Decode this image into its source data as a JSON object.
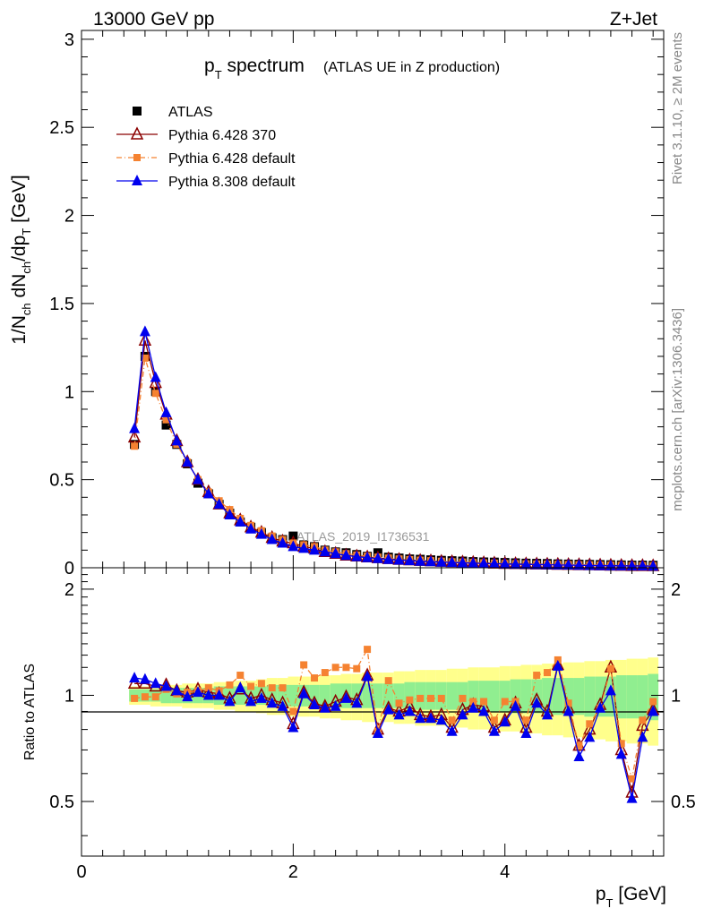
{
  "header": {
    "left": "13000 GeV pp",
    "right": "Z+Jet"
  },
  "side_labels": {
    "rivet": "Rivet 3.1.10, ≥ 2M events",
    "mcplots": "mcplots.cern.ch [arXiv:1306.3436]"
  },
  "analysis_tag": "ATLAS_2019_I1736531",
  "colors": {
    "data": "#000000",
    "p6_370": "#8b0000",
    "p6_default": "#f58231",
    "p8_default": "#0000ee",
    "band_inner": "#90ee90",
    "band_outer": "#ffff8c"
  },
  "chart_data": [
    {
      "type": "scatter",
      "title": "p_T spectrum",
      "title_main": "p",
      "title_sub": "T",
      "title_rest": " spectrum",
      "subtitle": "(ATLAS UE in Z production)",
      "ylabel": "1/N_ch dN_ch/dp_T [GeV]",
      "ylabel_parts": [
        "1/N",
        "ch",
        " dN",
        "ch",
        "/dp",
        "T",
        " [GeV]"
      ],
      "xlim": [
        0,
        5.5
      ],
      "ylim": [
        0,
        3.05
      ],
      "yticks": [
        0,
        0.5,
        1,
        1.5,
        2,
        2.5,
        3
      ],
      "ytick_labels": [
        "0",
        "0.5",
        "1",
        "1.5",
        "2",
        "2.5",
        "3"
      ],
      "legend_position": "top-left",
      "x": [
        0.5,
        0.6,
        0.7,
        0.8,
        0.9,
        1.0,
        1.1,
        1.2,
        1.3,
        1.4,
        1.5,
        1.6,
        1.7,
        1.8,
        1.9,
        2.0,
        2.1,
        2.2,
        2.3,
        2.4,
        2.5,
        2.6,
        2.7,
        2.8,
        2.9,
        3.0,
        3.1,
        3.2,
        3.3,
        3.4,
        3.5,
        3.6,
        3.7,
        3.8,
        3.9,
        4.0,
        4.1,
        4.2,
        4.3,
        4.4,
        4.5,
        4.6,
        4.7,
        4.8,
        4.9,
        5.0,
        5.1,
        5.2,
        5.3,
        5.4
      ],
      "series": [
        {
          "name": "ATLAS",
          "marker": "square",
          "values": [
            0.7,
            1.2,
            1.0,
            0.81,
            0.7,
            0.59,
            0.48,
            0.42,
            0.36,
            0.31,
            0.26,
            0.23,
            0.2,
            0.17,
            0.16,
            0.18,
            0.13,
            0.12,
            0.1,
            0.09,
            0.085,
            0.075,
            0.065,
            0.085,
            0.06,
            0.055,
            0.05,
            0.048,
            0.045,
            0.042,
            0.04,
            0.038,
            0.035,
            0.033,
            0.032,
            0.03,
            0.028,
            0.026,
            0.025,
            0.024,
            0.022,
            0.021,
            0.02,
            0.019,
            0.018,
            0.017,
            0.016,
            0.015,
            0.015,
            0.014
          ]
        },
        {
          "name": "Pythia 6.428 370",
          "marker": "open-triangle",
          "values": [
            0.74,
            1.29,
            1.05,
            0.87,
            0.72,
            0.6,
            0.5,
            0.43,
            0.36,
            0.31,
            0.27,
            0.23,
            0.2,
            0.17,
            0.15,
            0.14,
            0.12,
            0.11,
            0.09,
            0.08,
            0.07,
            0.065,
            0.06,
            0.055,
            0.05,
            0.046,
            0.043,
            0.04,
            0.038,
            0.035,
            0.033,
            0.031,
            0.029,
            0.027,
            0.025,
            0.023,
            0.022,
            0.021,
            0.02,
            0.019,
            0.018,
            0.017,
            0.016,
            0.015,
            0.014,
            0.013,
            0.012,
            0.011,
            0.011,
            0.01
          ]
        },
        {
          "name": "Pythia 6.428 default",
          "marker": "filled-square-small",
          "line": "dashdot",
          "values": [
            0.69,
            1.19,
            0.99,
            0.84,
            0.7,
            0.6,
            0.5,
            0.43,
            0.38,
            0.33,
            0.28,
            0.24,
            0.21,
            0.18,
            0.16,
            0.14,
            0.13,
            0.12,
            0.1,
            0.09,
            0.08,
            0.072,
            0.065,
            0.06,
            0.055,
            0.05,
            0.046,
            0.043,
            0.04,
            0.037,
            0.034,
            0.032,
            0.03,
            0.028,
            0.026,
            0.024,
            0.023,
            0.022,
            0.021,
            0.02,
            0.019,
            0.018,
            0.017,
            0.016,
            0.015,
            0.014,
            0.013,
            0.012,
            0.012,
            0.011
          ]
        },
        {
          "name": "Pythia 8.308 default",
          "marker": "filled-triangle",
          "values": [
            0.79,
            1.34,
            1.08,
            0.88,
            0.72,
            0.6,
            0.5,
            0.42,
            0.36,
            0.3,
            0.26,
            0.22,
            0.19,
            0.16,
            0.14,
            0.12,
            0.11,
            0.1,
            0.09,
            0.08,
            0.07,
            0.063,
            0.057,
            0.052,
            0.047,
            0.043,
            0.04,
            0.037,
            0.034,
            0.032,
            0.03,
            0.028,
            0.026,
            0.024,
            0.023,
            0.021,
            0.02,
            0.019,
            0.018,
            0.017,
            0.016,
            0.015,
            0.014,
            0.013,
            0.012,
            0.011,
            0.011,
            0.01,
            0.01,
            0.009
          ]
        }
      ]
    },
    {
      "type": "line",
      "ylabel": "Ratio to ATLAS",
      "xlabel": "p_T [GeV]",
      "xlabel_main": "p",
      "xlabel_sub": "T",
      "xlabel_rest": " [GeV]",
      "xlim": [
        0,
        5.5
      ],
      "ylim": [
        0.35,
        2.3
      ],
      "log_y": true,
      "xticks": [
        0,
        2,
        4
      ],
      "xtick_labels": [
        "0",
        "2",
        "4"
      ],
      "yticks": [
        0.5,
        1,
        2
      ],
      "ytick_labels": [
        "0.5",
        "1",
        "2"
      ],
      "reference_line": 1,
      "x": [
        0.5,
        0.6,
        0.7,
        0.8,
        0.9,
        1.0,
        1.1,
        1.2,
        1.3,
        1.4,
        1.5,
        1.6,
        1.7,
        1.8,
        1.9,
        2.0,
        2.1,
        2.2,
        2.3,
        2.4,
        2.5,
        2.6,
        2.7,
        2.8,
        2.9,
        3.0,
        3.1,
        3.2,
        3.3,
        3.4,
        3.5,
        3.6,
        3.7,
        3.8,
        3.9,
        4.0,
        4.1,
        4.2,
        4.3,
        4.4,
        4.5,
        4.6,
        4.7,
        4.8,
        4.9,
        5.0,
        5.1,
        5.2,
        5.3,
        5.4
      ],
      "band_inner": [
        0.04,
        0.04,
        0.04,
        0.05,
        0.05,
        0.05,
        0.05,
        0.05,
        0.06,
        0.06,
        0.06,
        0.06,
        0.06,
        0.07,
        0.07,
        0.07,
        0.07,
        0.07,
        0.07,
        0.08,
        0.08,
        0.08,
        0.08,
        0.08,
        0.08,
        0.08,
        0.09,
        0.09,
        0.09,
        0.09,
        0.09,
        0.09,
        0.1,
        0.1,
        0.1,
        0.1,
        0.11,
        0.11,
        0.11,
        0.12,
        0.12,
        0.12,
        0.12,
        0.13,
        0.13,
        0.13,
        0.14,
        0.14,
        0.14,
        0.15
      ],
      "band_outer": [
        0.06,
        0.06,
        0.07,
        0.07,
        0.07,
        0.08,
        0.08,
        0.08,
        0.09,
        0.09,
        0.1,
        0.1,
        0.11,
        0.12,
        0.12,
        0.13,
        0.13,
        0.13,
        0.14,
        0.14,
        0.15,
        0.15,
        0.16,
        0.16,
        0.16,
        0.17,
        0.17,
        0.18,
        0.18,
        0.18,
        0.19,
        0.19,
        0.2,
        0.2,
        0.2,
        0.21,
        0.21,
        0.22,
        0.22,
        0.23,
        0.23,
        0.24,
        0.24,
        0.25,
        0.25,
        0.26,
        0.26,
        0.27,
        0.27,
        0.28
      ],
      "series": [
        {
          "name": "Pythia 6.428 370",
          "values": [
            1.08,
            1.08,
            1.06,
            1.07,
            1.03,
            1.02,
            1.04,
            1.02,
            1.01,
            0.98,
            1.04,
            0.98,
            1.0,
            0.97,
            0.95,
            0.83,
            1.02,
            0.95,
            0.93,
            0.96,
            0.99,
            0.97,
            1.14,
            0.8,
            0.92,
            0.9,
            0.93,
            0.88,
            0.87,
            0.88,
            0.81,
            0.91,
            0.94,
            0.93,
            0.81,
            0.85,
            0.95,
            0.81,
            0.97,
            0.9,
            1.22,
            0.92,
            0.72,
            0.8,
            0.94,
            1.2,
            0.7,
            0.53,
            0.82,
            0.91
          ]
        },
        {
          "name": "Pythia 6.428 default",
          "values": [
            0.98,
            0.99,
            0.99,
            1.04,
            1.01,
            1.02,
            1.03,
            1.05,
            1.03,
            1.07,
            1.14,
            1.06,
            1.08,
            1.05,
            1.05,
            0.9,
            1.22,
            1.12,
            1.16,
            1.2,
            1.2,
            1.19,
            1.35,
            0.79,
            1.1,
            0.95,
            0.97,
            0.98,
            0.98,
            0.98,
            0.85,
            0.98,
            0.96,
            0.96,
            0.85,
            0.96,
            0.96,
            0.85,
            1.14,
            1.16,
            1.26,
            0.95,
            0.72,
            0.83,
            0.92,
            1.19,
            0.73,
            0.58,
            0.85,
            0.96
          ]
        },
        {
          "name": "Pythia 8.308 default",
          "values": [
            1.12,
            1.11,
            1.08,
            1.06,
            1.03,
            0.99,
            1.02,
            1.0,
            1.0,
            0.96,
            1.05,
            0.96,
            0.98,
            0.95,
            0.93,
            0.81,
            1.01,
            0.94,
            0.92,
            0.93,
            0.98,
            0.95,
            1.13,
            0.78,
            0.91,
            0.88,
            0.9,
            0.86,
            0.86,
            0.85,
            0.79,
            0.88,
            0.92,
            0.9,
            0.79,
            0.84,
            0.93,
            0.78,
            0.95,
            0.88,
            1.21,
            0.9,
            0.67,
            0.76,
            0.92,
            1.03,
            0.68,
            0.51,
            0.76,
            0.9
          ]
        }
      ]
    }
  ]
}
